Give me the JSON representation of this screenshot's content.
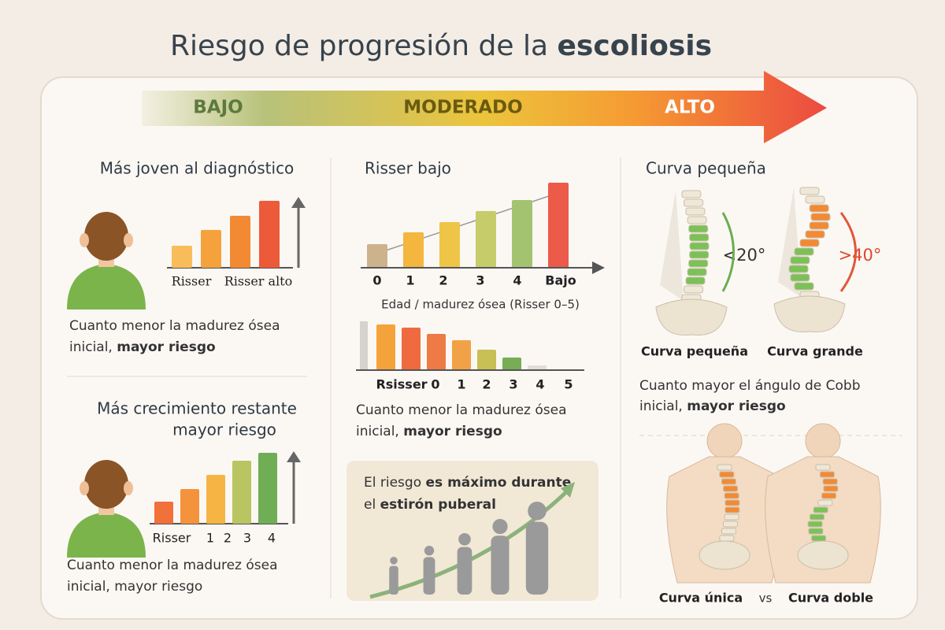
{
  "title": {
    "regular": "Riesgo de progresión de la ",
    "bold": "escoliosis"
  },
  "scale": [
    "BAJO",
    "MODERADO",
    "ALTO"
  ],
  "left": {
    "top": {
      "heading": "Más joven al diagnóstico",
      "axis_labels": [
        "Risser",
        "Risser alto"
      ],
      "caption": [
        "Cuanto menor la madurez ósea",
        "inicial, ",
        "mayor riesgo"
      ]
    },
    "bottom": {
      "heading": [
        "Más crecimiento restante",
        "mayor riesgo"
      ],
      "axis_labels": [
        "Risser",
        "1",
        "2",
        "3",
        "4"
      ],
      "caption": [
        "Cuanto menor la madurez ósea",
        "inicial, mayor riesgo"
      ]
    }
  },
  "middle": {
    "heading": "Risser bajo",
    "chart1_labels": [
      "0",
      "1",
      "2",
      "3",
      "4",
      "Bajo"
    ],
    "axis_title": "Edad / madurez ósea (Risser 0–5)",
    "chart2_labels": [
      "Rsisser",
      "0",
      "1",
      "2",
      "3",
      "4",
      "5"
    ],
    "caption": [
      "Cuanto menor la madurez ósea",
      "inicial, ",
      "mayor riesgo"
    ],
    "callout": [
      "El riesgo ",
      "es máximo durante",
      "el ",
      "estirón puberal"
    ]
  },
  "right": {
    "heading": "Curva pequeña",
    "angles": [
      "<20°",
      ">40°"
    ],
    "spine_labels": [
      "Curva pequeña",
      "Curva grande"
    ],
    "caption": [
      "Cuanto mayor el ángulo de Cobb",
      "inicial, ",
      "mayor riesgo"
    ],
    "torso_labels": [
      "Curva única",
      "vs",
      "Curva doble"
    ]
  }
}
